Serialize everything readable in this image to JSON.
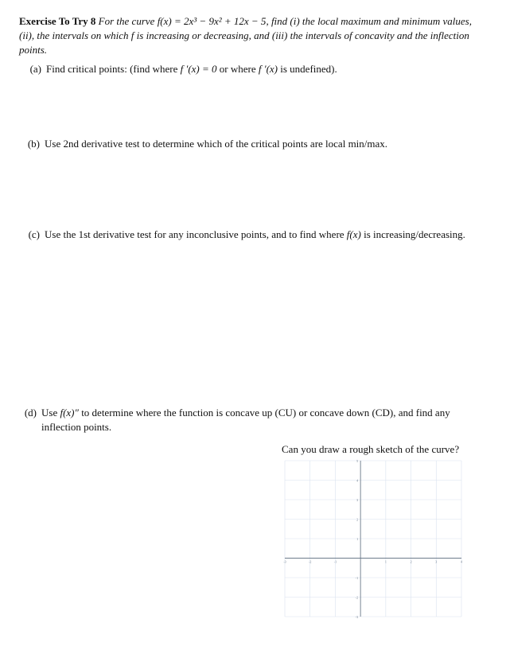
{
  "exercise": {
    "label_prefix": "Exercise To Try 8",
    "prompt_before": "For the curve ",
    "func": "f(x) = 2x³ − 9x² + 12x − 5",
    "prompt_after": ", find (i) the local maximum and minimum values, (ii), the intervals on which f is increasing or decreasing, and (iii) the intervals of concavity and the inflection points."
  },
  "parts": {
    "a": {
      "marker": "(a)",
      "text_before": "Find critical points: (find where ",
      "eq1": "f ′(x) = 0",
      "mid": " or where ",
      "eq2": "f ′(x)",
      "text_after": " is undefined)."
    },
    "b": {
      "marker": "(b)",
      "text": "Use 2nd derivative test to determine which of the critical points are local min/max."
    },
    "c": {
      "marker": "(c)",
      "text_before": "Use the 1st derivative test for any inconclusive points, and to find where ",
      "fx": "f(x)",
      "text_after": " is increasing/decreasing."
    },
    "d": {
      "marker": "(d)",
      "text_before": "Use ",
      "fx2": "f(x)″",
      "text_after": " to determine where the function is concave up (CU) or concave down (CD), and find any inflection points."
    }
  },
  "sketch": {
    "label": "Can you draw a rough sketch of the curve?",
    "grid": {
      "x_ticks": [
        -3,
        -2,
        -1,
        0,
        1,
        2,
        3,
        4
      ],
      "y_ticks": [
        -3,
        -2,
        -1,
        0,
        1,
        2,
        3,
        4,
        5
      ],
      "gridline_color": "#d9e2ef",
      "axis_color": "#6d7b8b",
      "tick_color": "#6d7b8b",
      "background": "#ffffff",
      "width_units": 7,
      "height_units": 8,
      "tick_fontsize": 4
    }
  }
}
